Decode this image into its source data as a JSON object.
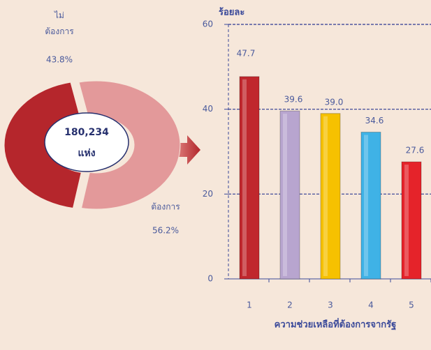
{
  "chart_data": [
    {
      "type": "donut",
      "categories": [
        "ไม่\nต้องการ",
        "ต้องการ"
      ],
      "values": [
        43.8,
        56.2
      ],
      "value_labels": [
        "43.8%",
        "56.2%"
      ],
      "colors": [
        "#b5262c",
        "#e3999a"
      ],
      "center_text": [
        "180,234",
        "แห่ง"
      ]
    },
    {
      "type": "bar",
      "y_label": "ร้อยละ",
      "x_label": "ความช่วยเหลือที่ต้องการจากรัฐ",
      "categories": [
        "1",
        "2",
        "3",
        "4",
        "5"
      ],
      "values": [
        47.7,
        39.6,
        39.0,
        34.6,
        27.6
      ],
      "value_labels": [
        "47.7",
        "39.6",
        "39.0",
        "34.6",
        "27.6"
      ],
      "colors": [
        "#c0272d",
        "#b8a5cf",
        "#f6c100",
        "#3fb2e6",
        "#e5232a"
      ],
      "ylim": [
        0,
        60
      ],
      "yticks": [
        0,
        20,
        40,
        60
      ],
      "grid": true
    }
  ]
}
